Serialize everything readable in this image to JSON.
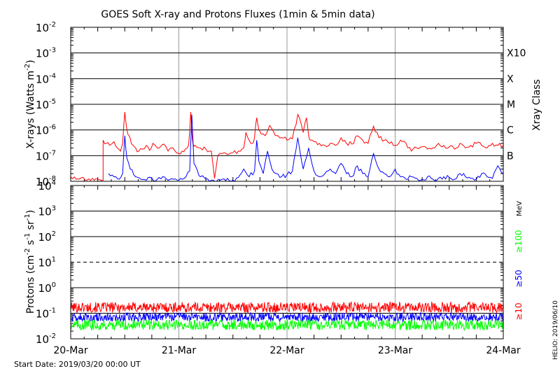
{
  "title": "GOES Soft X-ray and Protons Fluxes   (1min & 5min data)",
  "footer": {
    "start_date": "Start Date: 2019/03/20 00:00 UT",
    "credit": "HELIO: 2019/06/10"
  },
  "colors": {
    "xray_long": "#ff0000",
    "xray_short": "#0000ff",
    "proton_10": "#ff0000",
    "proton_50": "#0000ff",
    "proton_100": "#00ff00",
    "vertical_grid": "#999999"
  },
  "chart_data": [
    {
      "type": "line",
      "title": "GOES Soft X-ray and Protons Fluxes   (1min & 5min data)",
      "ylabel": "X-rays (Watts m^-2)",
      "yscale": "log",
      "ylim": [
        1e-08,
        0.01
      ],
      "xlim": [
        "20-Mar",
        "24-Mar"
      ],
      "x_ticks": [
        "20-Mar",
        "21-Mar",
        "22-Mar",
        "23-Mar",
        "24-Mar"
      ],
      "y_ticks": [
        {
          "base": "10",
          "exp": "-8"
        },
        {
          "base": "10",
          "exp": "-7"
        },
        {
          "base": "10",
          "exp": "-6"
        },
        {
          "base": "10",
          "exp": "-5"
        },
        {
          "base": "10",
          "exp": "-4"
        },
        {
          "base": "10",
          "exp": "-3"
        },
        {
          "base": "10",
          "exp": "-2"
        }
      ],
      "right_axis_label": "Xray Class",
      "flare_classes": [
        {
          "label": "B",
          "value": 1e-07
        },
        {
          "label": "C",
          "value": 1e-06
        },
        {
          "label": "M",
          "value": 1e-05
        },
        {
          "label": "X",
          "value": 0.0001
        },
        {
          "label": "X10",
          "value": 0.001
        }
      ],
      "series": [
        {
          "color": "#ff0000",
          "x": [
            0.0,
            0.05,
            0.1,
            0.15,
            0.2,
            0.25,
            0.3,
            0.3,
            0.33,
            0.36,
            0.4,
            0.43,
            0.46,
            0.48,
            0.5,
            0.52,
            0.54,
            0.56,
            0.6,
            0.63,
            0.66,
            0.7,
            0.73,
            0.76,
            0.8,
            0.83,
            0.86,
            0.9,
            0.93,
            0.96,
            1.0,
            1.03,
            1.06,
            1.09,
            1.11,
            1.12,
            1.13,
            1.15,
            1.2,
            1.25,
            1.3,
            1.33,
            1.36,
            1.4,
            1.45,
            1.5,
            1.55,
            1.6,
            1.62,
            1.65,
            1.68,
            1.7,
            1.72,
            1.74,
            1.76,
            1.8,
            1.84,
            1.88,
            1.9,
            1.95,
            2.0,
            2.05,
            2.1,
            2.15,
            2.18,
            2.2,
            2.22,
            2.25,
            2.3,
            2.35,
            2.4,
            2.45,
            2.5,
            2.55,
            2.6,
            2.65,
            2.7,
            2.75,
            2.8,
            2.85,
            2.9,
            2.95,
            3.0,
            3.05,
            3.1,
            3.15,
            3.2,
            3.25,
            3.3,
            3.35,
            3.4,
            3.45,
            3.5,
            3.55,
            3.6,
            3.65,
            3.7,
            3.75,
            3.8,
            3.85,
            3.9,
            3.95,
            4.0
          ],
          "y": [
            1.5e-08,
            1.2e-08,
            1.4e-08,
            1.1e-08,
            1.3e-08,
            1.2e-08,
            1.1e-08,
            4e-07,
            3e-07,
            2.5e-07,
            3.5e-07,
            2e-07,
            1.5e-07,
            3e-07,
            5e-06,
            1e-06,
            6e-07,
            3e-07,
            2e-07,
            1.5e-07,
            1.8e-07,
            2.5e-07,
            1.6e-07,
            3e-07,
            2e-07,
            2.2e-07,
            2.8e-07,
            1.5e-07,
            2e-07,
            1.6e-07,
            1.2e-07,
            1.5e-07,
            1.8e-07,
            2.5e-07,
            5e-06,
            8e-07,
            3e-07,
            2.5e-07,
            2e-07,
            1.8e-07,
            1.5e-07,
            1.3e-08,
            1e-07,
            1.2e-07,
            1.1e-07,
            1.3e-07,
            1.5e-07,
            2e-07,
            8e-07,
            4e-07,
            3e-07,
            5e-07,
            3e-06,
            1e-06,
            7e-07,
            6e-07,
            1.5e-06,
            8e-07,
            6e-07,
            5e-07,
            4e-07,
            4.5e-07,
            4e-06,
            8e-07,
            3e-06,
            6e-07,
            4e-07,
            3.5e-07,
            3e-07,
            2.5e-07,
            3e-07,
            2.5e-07,
            5e-07,
            3e-07,
            2.8e-07,
            6e-07,
            4e-07,
            3e-07,
            1.4e-06,
            5e-07,
            4e-07,
            3e-07,
            2.5e-07,
            4e-07,
            3e-07,
            1.5e-07,
            2e-07,
            2.2e-07,
            1.8e-07,
            2e-07,
            3e-07,
            2.5e-07,
            2.2e-07,
            1.8e-07,
            3e-07,
            2e-07,
            2.5e-07,
            3e-07,
            2.5e-07,
            2e-07,
            3e-07,
            2.5e-07,
            2.5e-07
          ]
        },
        {
          "color": "#0000ff",
          "x": [
            0.35,
            0.4,
            0.45,
            0.48,
            0.5,
            0.52,
            0.55,
            0.6,
            0.65,
            0.7,
            0.75,
            0.8,
            0.85,
            0.9,
            0.95,
            1.0,
            1.05,
            1.1,
            1.12,
            1.14,
            1.2,
            1.25,
            1.3,
            1.35,
            1.4,
            1.45,
            1.5,
            1.55,
            1.6,
            1.65,
            1.7,
            1.72,
            1.74,
            1.78,
            1.82,
            1.86,
            1.9,
            1.95,
            2.0,
            2.05,
            2.1,
            2.15,
            2.2,
            2.25,
            2.3,
            2.35,
            2.4,
            2.45,
            2.5,
            2.55,
            2.6,
            2.65,
            2.7,
            2.75,
            2.8,
            2.85,
            2.9,
            2.95,
            3.0,
            3.05,
            3.1,
            3.15,
            3.2,
            3.25,
            3.3,
            3.35,
            3.4,
            3.45,
            3.5,
            3.55,
            3.6,
            3.65,
            3.7,
            3.75,
            3.8,
            3.85,
            3.9,
            3.95,
            4.0
          ],
          "y": [
            2e-08,
            1.5e-08,
            1.2e-08,
            2e-08,
            6e-07,
            8e-08,
            3e-08,
            1.5e-08,
            1.2e-08,
            1.1e-08,
            1.3e-08,
            1.2e-08,
            1.5e-08,
            1.1e-08,
            1.2e-08,
            1.1e-08,
            1.3e-08,
            2.5e-08,
            4e-06,
            5e-08,
            1.5e-08,
            1.2e-08,
            1.1e-08,
            1e-08,
            1.2e-08,
            1.3e-08,
            1.1e-08,
            1.4e-08,
            3e-08,
            1.5e-08,
            2.5e-08,
            4e-07,
            6e-08,
            2e-08,
            1.5e-07,
            3e-08,
            2e-08,
            1.5e-08,
            1.8e-08,
            2.5e-08,
            5e-07,
            3e-08,
            2e-07,
            2.5e-08,
            1.5e-08,
            2e-08,
            3e-08,
            2e-08,
            5e-08,
            2e-08,
            1.5e-08,
            4e-08,
            2e-08,
            1.5e-08,
            1.2e-07,
            3e-08,
            2e-08,
            1.5e-08,
            3e-08,
            1.5e-08,
            1.2e-08,
            1.5e-08,
            1.3e-08,
            1.2e-08,
            1.5e-08,
            1.2e-08,
            1.3e-08,
            1.5e-08,
            1.4e-08,
            1.2e-08,
            2e-08,
            1.5e-08,
            1.3e-08,
            1.2e-08,
            2e-08,
            1.5e-08,
            1.3e-08,
            4e-08,
            2e-08
          ]
        }
      ]
    },
    {
      "type": "line",
      "ylabel": "Protons (cm^-2 s^-1 sr^-1)",
      "yscale": "log",
      "ylim": [
        0.01,
        10000
      ],
      "xlim": [
        "20-Mar",
        "24-Mar"
      ],
      "x_ticks": [
        "20-Mar",
        "21-Mar",
        "22-Mar",
        "23-Mar",
        "24-Mar"
      ],
      "y_ticks": [
        {
          "base": "10",
          "exp": "-2"
        },
        {
          "base": "10",
          "exp": "-1"
        },
        {
          "base": "10",
          "exp": "0"
        },
        {
          "base": "10",
          "exp": "1"
        },
        {
          "base": "10",
          "exp": "2"
        },
        {
          "base": "10",
          "exp": "3"
        },
        {
          "base": "10",
          "exp": "4"
        }
      ],
      "reference_line": 10,
      "energy_unit": "MeV",
      "series": [
        {
          "name": "≥10",
          "color": "#ff0000",
          "level": 0.17,
          "spread": 1.6
        },
        {
          "name": "≥50",
          "color": "#0000ff",
          "level": 0.07,
          "spread": 1.5
        },
        {
          "name": "≥100",
          "color": "#00ff00",
          "level": 0.035,
          "spread": 1.6
        }
      ]
    }
  ]
}
